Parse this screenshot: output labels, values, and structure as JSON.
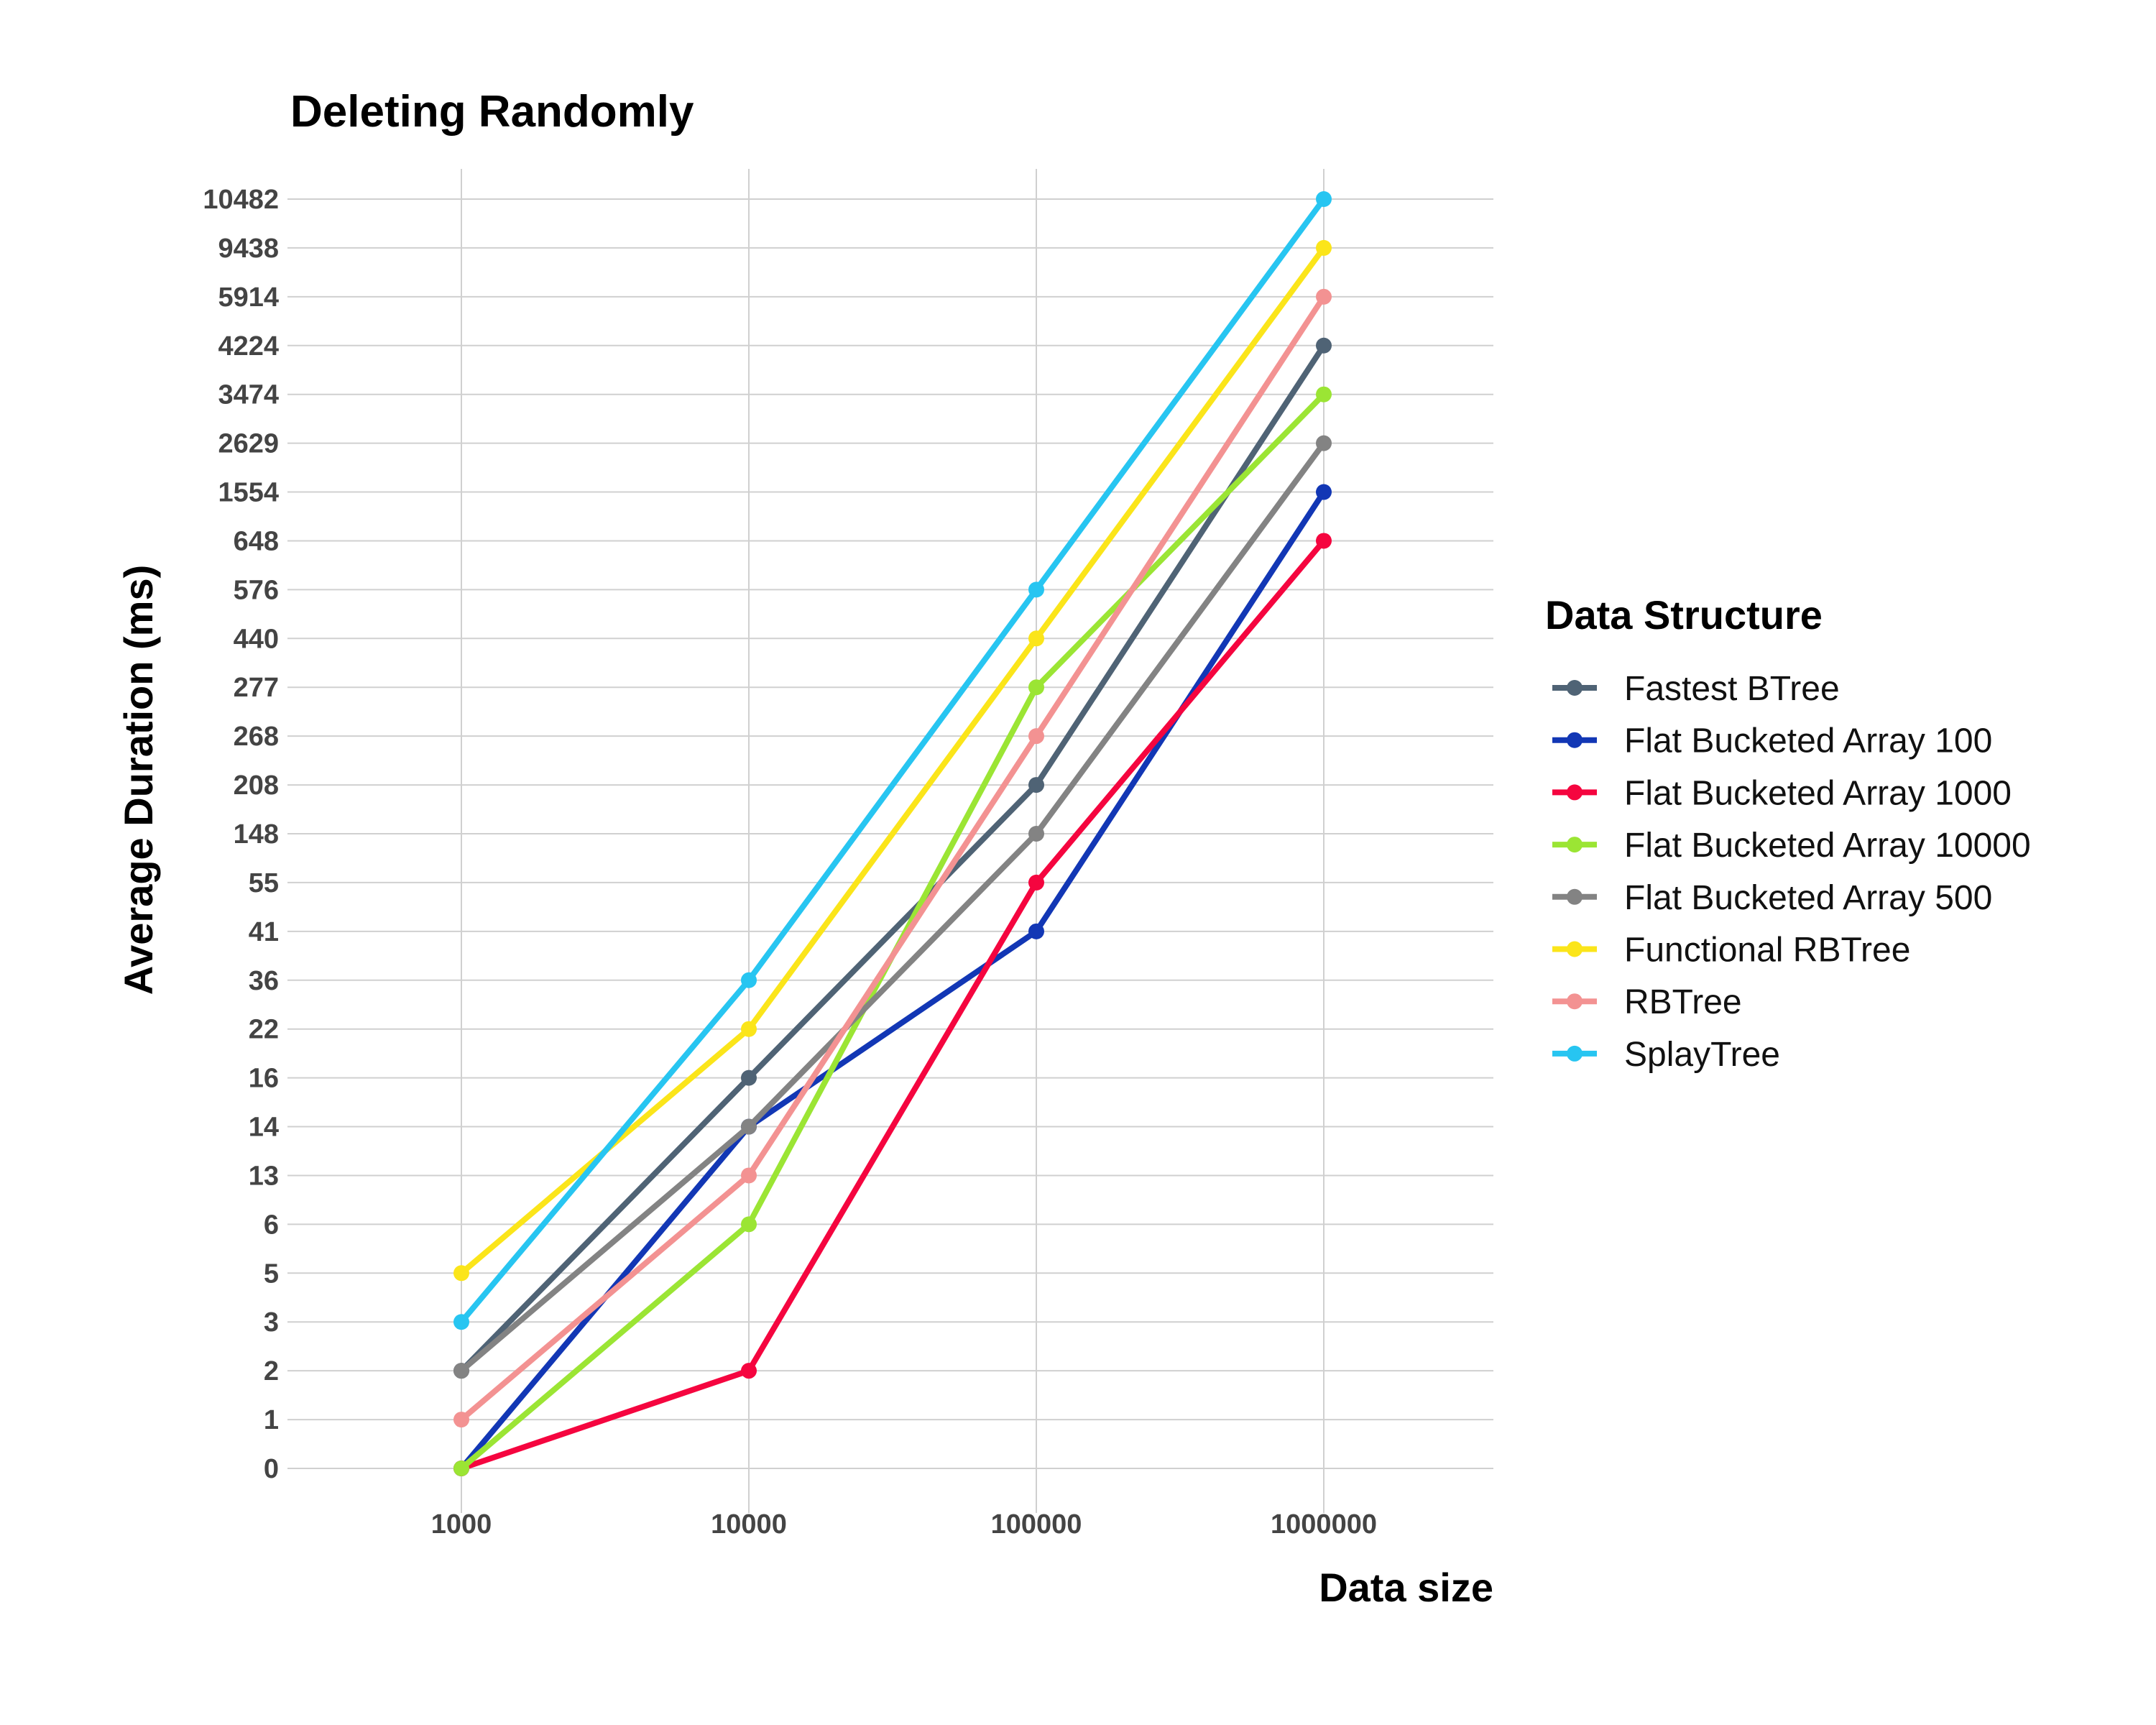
{
  "chart_data": {
    "type": "line",
    "title": "Deleting Randomly",
    "xlabel": "Data size",
    "ylabel": "Average Duration (ms)",
    "x_scale": "categorical",
    "y_scale": "categorical (ordered tick labels)",
    "categories": [
      "1000",
      "10000",
      "100000",
      "1000000"
    ],
    "y_ticks": [
      "0",
      "1",
      "2",
      "3",
      "5",
      "6",
      "13",
      "14",
      "16",
      "22",
      "36",
      "41",
      "55",
      "148",
      "208",
      "268",
      "277",
      "440",
      "576",
      "648",
      "1554",
      "2629",
      "3474",
      "4224",
      "5914",
      "9438",
      "10482"
    ],
    "legend": {
      "title": "Data Structure",
      "position": "right"
    },
    "grid": true,
    "series": [
      {
        "name": "Fastest BTree",
        "color": "#4f6375",
        "values": [
          2,
          16,
          208,
          4224
        ]
      },
      {
        "name": "Flat Bucketed Array 100",
        "color": "#1237b5",
        "values": [
          0,
          14,
          41,
          1554
        ]
      },
      {
        "name": "Flat Bucketed Array 1000",
        "color": "#f5053f",
        "values": [
          0,
          2,
          55,
          648
        ]
      },
      {
        "name": "Flat Bucketed Array 10000",
        "color": "#9be534",
        "values": [
          0,
          6,
          277,
          3474
        ]
      },
      {
        "name": "Flat Bucketed Array 500",
        "color": "#838383",
        "values": [
          2,
          14,
          148,
          2629
        ]
      },
      {
        "name": "Functional RBTree",
        "color": "#fbe51a",
        "values": [
          5,
          22,
          440,
          9438
        ]
      },
      {
        "name": "RBTree",
        "color": "#f39292",
        "values": [
          1,
          13,
          268,
          5914
        ]
      },
      {
        "name": "SplayTree",
        "color": "#27c5f1",
        "values": [
          3,
          36,
          576,
          10482
        ]
      }
    ]
  }
}
